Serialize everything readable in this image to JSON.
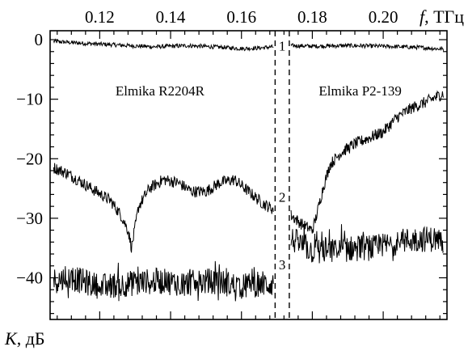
{
  "chart_data": {
    "type": "line",
    "x_axis": {
      "position": "top",
      "label_var": "f",
      "label_unit": ", ТГц",
      "range": [
        0.106,
        0.218
      ],
      "major_ticks": [
        0.12,
        0.14,
        0.16,
        0.18,
        0.2
      ],
      "tick_labels": [
        "0.12",
        "0.14",
        "0.16",
        "0.18",
        "0.20"
      ],
      "minor_step": 0.004
    },
    "y_axis": {
      "position": "left",
      "label_var": "K",
      "label_unit": ", дБ",
      "range": [
        -47,
        1.5
      ],
      "major_ticks": [
        0,
        -10,
        -20,
        -30,
        -40
      ],
      "tick_labels": [
        "0",
        "−10",
        "−20",
        "−30",
        "−40"
      ],
      "minor_step": 2
    },
    "grid": false,
    "legend": "none",
    "dividers_x": [
      0.1695,
      0.1735
    ],
    "annotations": [
      {
        "text": "Elmika R2204R",
        "x": 0.137,
        "y": -9.4
      },
      {
        "text": "Elmika P2-139",
        "x": 0.1935,
        "y": -9.4
      }
    ],
    "curve_labels": [
      {
        "text": "1",
        "x": 0.1715,
        "y": -1.8
      },
      {
        "text": "2",
        "x": 0.1715,
        "y": -27.2
      },
      {
        "text": "3",
        "x": 0.1715,
        "y": -38.6
      }
    ],
    "series": [
      {
        "segments": [
          {
            "x": [
              0.107,
              0.115,
              0.125,
              0.135,
              0.145,
              0.155,
              0.16,
              0.165,
              0.169
            ],
            "y": [
              -0.3,
              -0.6,
              -0.9,
              -1.2,
              -1.0,
              -1.3,
              -1.5,
              -1.4,
              -1.2
            ]
          },
          {
            "x": [
              0.174,
              0.18,
              0.19,
              0.2,
              0.21,
              0.217
            ],
            "y": [
              -1.0,
              -1.1,
              -1.0,
              -1.1,
              -1.3,
              -1.6
            ]
          }
        ],
        "noise": 0.35
      },
      {
        "segments": [
          {
            "x": [
              0.107,
              0.111,
              0.115,
              0.119,
              0.123,
              0.126,
              0.128,
              0.129,
              0.131,
              0.134,
              0.138,
              0.142,
              0.146,
              0.15,
              0.154,
              0.158,
              0.162,
              0.166,
              0.169
            ],
            "y": [
              -21.5,
              -22.5,
              -24.0,
              -25.5,
              -27.0,
              -29.5,
              -32.0,
              -35.0,
              -28.0,
              -25.0,
              -23.5,
              -24.0,
              -25.5,
              -25.5,
              -24.0,
              -23.5,
              -25.5,
              -27.5,
              -28.5
            ]
          },
          {
            "x": [
              0.174,
              0.177,
              0.18,
              0.181,
              0.183,
              0.185,
              0.188,
              0.192,
              0.196,
              0.2,
              0.204,
              0.208,
              0.212,
              0.217
            ],
            "y": [
              -29.5,
              -31.0,
              -32.0,
              -30.0,
              -25.0,
              -21.0,
              -19.0,
              -17.5,
              -16.5,
              -15.5,
              -13.0,
              -11.5,
              -10.5,
              -9.0
            ]
          }
        ],
        "noise": 1.0
      },
      {
        "segments": [
          {
            "x": [
              0.107,
              0.112,
              0.12,
              0.128,
              0.136,
              0.144,
              0.152,
              0.16,
              0.165,
              0.169
            ],
            "y": [
              -40.5,
              -40.0,
              -41.5,
              -41.0,
              -40.5,
              -41.0,
              -40.5,
              -41.5,
              -41.0,
              -41.0
            ]
          },
          {
            "x": [
              0.174,
              0.18,
              0.186,
              0.192,
              0.198,
              0.204,
              0.21,
              0.217
            ],
            "y": [
              -33.5,
              -35.5,
              -35.5,
              -35.0,
              -35.0,
              -34.0,
              -33.5,
              -33.5
            ]
          }
        ],
        "noise": 2.2
      }
    ]
  }
}
